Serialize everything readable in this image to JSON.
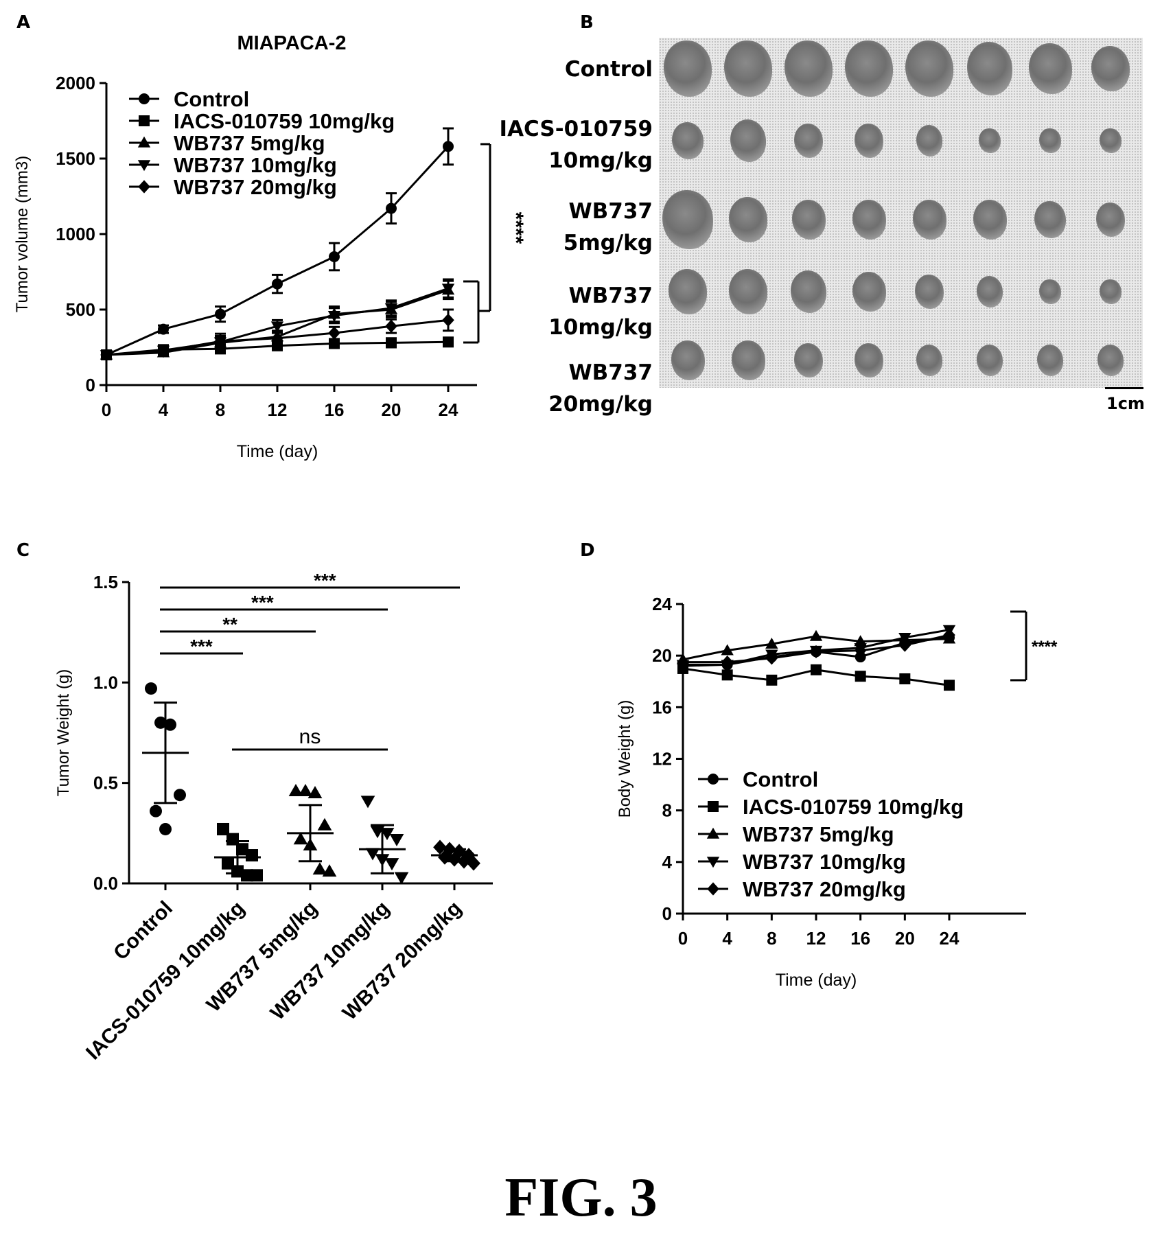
{
  "figure_label": "FIG. 3",
  "panels": {
    "a": "A",
    "b": "B",
    "c": "C",
    "d": "D"
  },
  "chart_data": [
    {
      "id": "A",
      "type": "line",
      "title": "MIAPACA-2",
      "xlabel": "Time (day)",
      "ylabel": "Tumor volume (mm3)",
      "x": [
        0,
        4,
        8,
        12,
        16,
        20,
        24
      ],
      "xticks": [
        "0",
        "4",
        "8",
        "12",
        "16",
        "20",
        "24"
      ],
      "yticks": [
        "0",
        "500",
        "1000",
        "1500",
        "2000"
      ],
      "xlim": [
        0,
        24
      ],
      "ylim": [
        0,
        2000
      ],
      "legend_position": "top-left",
      "series": [
        {
          "name": "Control",
          "marker": "circle",
          "values": [
            200,
            370,
            470,
            670,
            850,
            1170,
            1580
          ],
          "errors": [
            15,
            25,
            50,
            60,
            90,
            100,
            120
          ]
        },
        {
          "name": "IACS-010759 10mg/kg",
          "marker": "square",
          "values": [
            200,
            235,
            240,
            260,
            275,
            280,
            285
          ],
          "errors": [
            10,
            20,
            30,
            25,
            25,
            30,
            25
          ]
        },
        {
          "name": "WB737 5mg/kg",
          "marker": "triangle-up",
          "values": [
            200,
            215,
            280,
            320,
            470,
            500,
            630
          ],
          "errors": [
            10,
            20,
            60,
            40,
            50,
            50,
            60
          ]
        },
        {
          "name": "WB737 10mg/kg",
          "marker": "triangle-down",
          "values": [
            200,
            230,
            285,
            390,
            460,
            510,
            640
          ],
          "errors": [
            10,
            20,
            40,
            40,
            50,
            50,
            60
          ]
        },
        {
          "name": "WB737 20mg/kg",
          "marker": "diamond",
          "values": [
            200,
            225,
            290,
            310,
            345,
            390,
            430
          ],
          "errors": [
            10,
            20,
            30,
            35,
            40,
            45,
            70
          ]
        }
      ],
      "annotations": [
        {
          "text": "****"
        }
      ]
    },
    {
      "id": "C",
      "type": "scatter",
      "ylabel": "Tumor Weight (g)",
      "ylim": [
        0,
        1.5
      ],
      "yticks": [
        "0.0",
        "0.5",
        "1.0",
        "1.5"
      ],
      "categories": [
        "Control",
        "IACS-010759 10mg/kg",
        "WB737 5mg/kg",
        "WB737 10mg/kg",
        "WB737 20mg/kg"
      ],
      "groups": [
        {
          "marker": "circle",
          "points": [
            0.97,
            0.8,
            0.79,
            0.44,
            0.36,
            0.27
          ],
          "mean": 0.65,
          "sd": 0.25
        },
        {
          "marker": "square",
          "points": [
            0.27,
            0.22,
            0.17,
            0.14,
            0.1,
            0.06,
            0.04,
            0.04
          ],
          "mean": 0.13,
          "sd": 0.08
        },
        {
          "marker": "triangle-up",
          "points": [
            0.46,
            0.46,
            0.45,
            0.29,
            0.22,
            0.19,
            0.07,
            0.06
          ],
          "mean": 0.25,
          "sd": 0.14
        },
        {
          "marker": "triangle-down",
          "points": [
            0.41,
            0.26,
            0.25,
            0.22,
            0.15,
            0.12,
            0.1,
            0.03
          ],
          "mean": 0.17,
          "sd": 0.12
        },
        {
          "marker": "diamond",
          "points": [
            0.18,
            0.17,
            0.16,
            0.14,
            0.13,
            0.12,
            0.11,
            0.1
          ],
          "mean": 0.14,
          "sd": 0.03
        }
      ],
      "significance": [
        {
          "from": 0,
          "to": 1,
          "text": "***"
        },
        {
          "from": 0,
          "to": 2,
          "text": "**"
        },
        {
          "from": 0,
          "to": 3,
          "text": "***"
        },
        {
          "from": 0,
          "to": 4,
          "text": "***"
        },
        {
          "from": 1,
          "to": 3,
          "text": "ns"
        }
      ]
    },
    {
      "id": "D",
      "type": "line",
      "xlabel": "Time (day)",
      "ylabel": "Body Weight (g)",
      "x": [
        0,
        4,
        8,
        12,
        16,
        20,
        24
      ],
      "xticks": [
        "0",
        "4",
        "8",
        "12",
        "16",
        "20",
        "24"
      ],
      "yticks": [
        "0",
        "4",
        "8",
        "12",
        "16",
        "20",
        "24"
      ],
      "xlim": [
        0,
        24
      ],
      "ylim": [
        0,
        24
      ],
      "legend_position": "bottom-left",
      "series": [
        {
          "name": "Control",
          "marker": "circle",
          "values": [
            19.2,
            19.3,
            19.9,
            20.3,
            19.9,
            21.0,
            21.4
          ]
        },
        {
          "name": "IACS-010759 10mg/kg",
          "marker": "square",
          "values": [
            19.0,
            18.5,
            18.1,
            18.9,
            18.4,
            18.2,
            17.7
          ]
        },
        {
          "name": "WB737 5mg/kg",
          "marker": "triangle-up",
          "values": [
            19.7,
            20.4,
            20.9,
            21.5,
            21.1,
            21.2,
            21.3
          ]
        },
        {
          "name": "WB737 10mg/kg",
          "marker": "triangle-down",
          "values": [
            19.3,
            19.3,
            20.1,
            20.4,
            20.6,
            21.4,
            22.0
          ]
        },
        {
          "name": "WB737 20mg/kg",
          "marker": "diamond",
          "values": [
            19.5,
            19.5,
            19.8,
            20.3,
            20.4,
            20.8,
            21.6
          ]
        }
      ],
      "annotations": [
        {
          "text": "****"
        }
      ]
    }
  ],
  "photo_panel": {
    "rows": [
      {
        "label_lines": [
          "Control"
        ],
        "count": 8,
        "sizes": [
          1.0,
          1.0,
          1.0,
          1.0,
          1.0,
          0.95,
          0.9,
          0.8
        ]
      },
      {
        "label_lines": [
          "IACS-010759",
          "10mg/kg"
        ],
        "count": 8,
        "sizes": [
          0.65,
          0.75,
          0.6,
          0.6,
          0.55,
          0.45,
          0.45,
          0.45
        ]
      },
      {
        "label_lines": [
          "WB737",
          "5mg/kg"
        ],
        "count": 8,
        "sizes": [
          1.05,
          0.8,
          0.7,
          0.7,
          0.7,
          0.7,
          0.65,
          0.6
        ]
      },
      {
        "label_lines": [
          "WB737",
          "10mg/kg"
        ],
        "count": 8,
        "sizes": [
          0.8,
          0.8,
          0.75,
          0.7,
          0.6,
          0.55,
          0.45,
          0.45
        ]
      },
      {
        "label_lines": [
          "WB737",
          "20mg/kg"
        ],
        "count": 8,
        "sizes": [
          0.7,
          0.7,
          0.6,
          0.6,
          0.55,
          0.55,
          0.55,
          0.55
        ]
      }
    ],
    "scale_bar_label": "1cm"
  }
}
